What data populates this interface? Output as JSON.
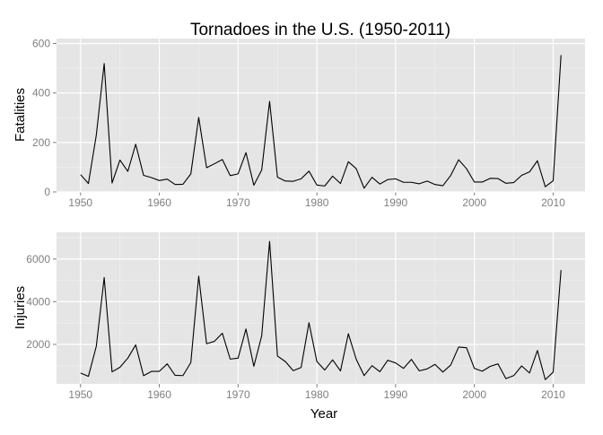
{
  "chart_data": {
    "type": "line",
    "title": "Tornadoes in the U.S. (1950-2011)",
    "xlabel": "Year",
    "background": "#e5e5e5",
    "gridline_color": "#ffffff",
    "line_color": "#000000",
    "x": [
      1950,
      1951,
      1952,
      1953,
      1954,
      1955,
      1956,
      1957,
      1958,
      1959,
      1960,
      1961,
      1962,
      1963,
      1964,
      1965,
      1966,
      1967,
      1968,
      1969,
      1970,
      1971,
      1972,
      1973,
      1974,
      1975,
      1976,
      1977,
      1978,
      1979,
      1980,
      1981,
      1982,
      1983,
      1984,
      1985,
      1986,
      1987,
      1988,
      1989,
      1990,
      1991,
      1992,
      1993,
      1994,
      1995,
      1996,
      1997,
      1998,
      1999,
      2000,
      2001,
      2002,
      2003,
      2004,
      2005,
      2006,
      2007,
      2008,
      2009,
      2010,
      2011
    ],
    "panels": [
      {
        "ylabel": "Fatalities",
        "ylim": [
          0,
          620
        ],
        "yticks": [
          0,
          200,
          400,
          600
        ],
        "xticks": [
          1950,
          1960,
          1970,
          1980,
          1990,
          2000,
          2010
        ],
        "values": [
          70,
          34,
          230,
          519,
          36,
          129,
          83,
          193,
          67,
          58,
          46,
          52,
          30,
          31,
          73,
          301,
          98,
          114,
          131,
          66,
          73,
          159,
          27,
          89,
          366,
          60,
          44,
          43,
          53,
          84,
          28,
          24,
          64,
          34,
          122,
          94,
          15,
          59,
          32,
          50,
          53,
          39,
          39,
          33,
          44,
          30,
          25,
          67,
          130,
          94,
          40,
          40,
          55,
          54,
          35,
          38,
          67,
          81,
          126,
          21,
          45,
          553
        ]
      },
      {
        "ylabel": "Injuries",
        "ylim": [
          150,
          7250
        ],
        "yticks": [
          2000,
          4000,
          6000
        ],
        "xticks": [
          1950,
          1960,
          1970,
          1980,
          1990,
          2000,
          2010
        ],
        "values": [
          659,
          504,
          1915,
          5131,
          715,
          926,
          1355,
          1976,
          535,
          734,
          737,
          1087,
          551,
          538,
          1148,
          5197,
          2030,
          2144,
          2522,
          1311,
          1355,
          2723,
          976,
          2406,
          6824,
          1457,
          1195,
          771,
          919,
          3014,
          1200,
          798,
          1276,
          756,
          2499,
          1299,
          537,
          1003,
          718,
          1257,
          1129,
          877,
          1296,
          760,
          851,
          1063,
          704,
          1035,
          1874,
          1842,
          873,
          743,
          968,
          1087,
          396,
          537,
          990,
          659,
          1714,
          351,
          699,
          5480
        ]
      }
    ]
  }
}
